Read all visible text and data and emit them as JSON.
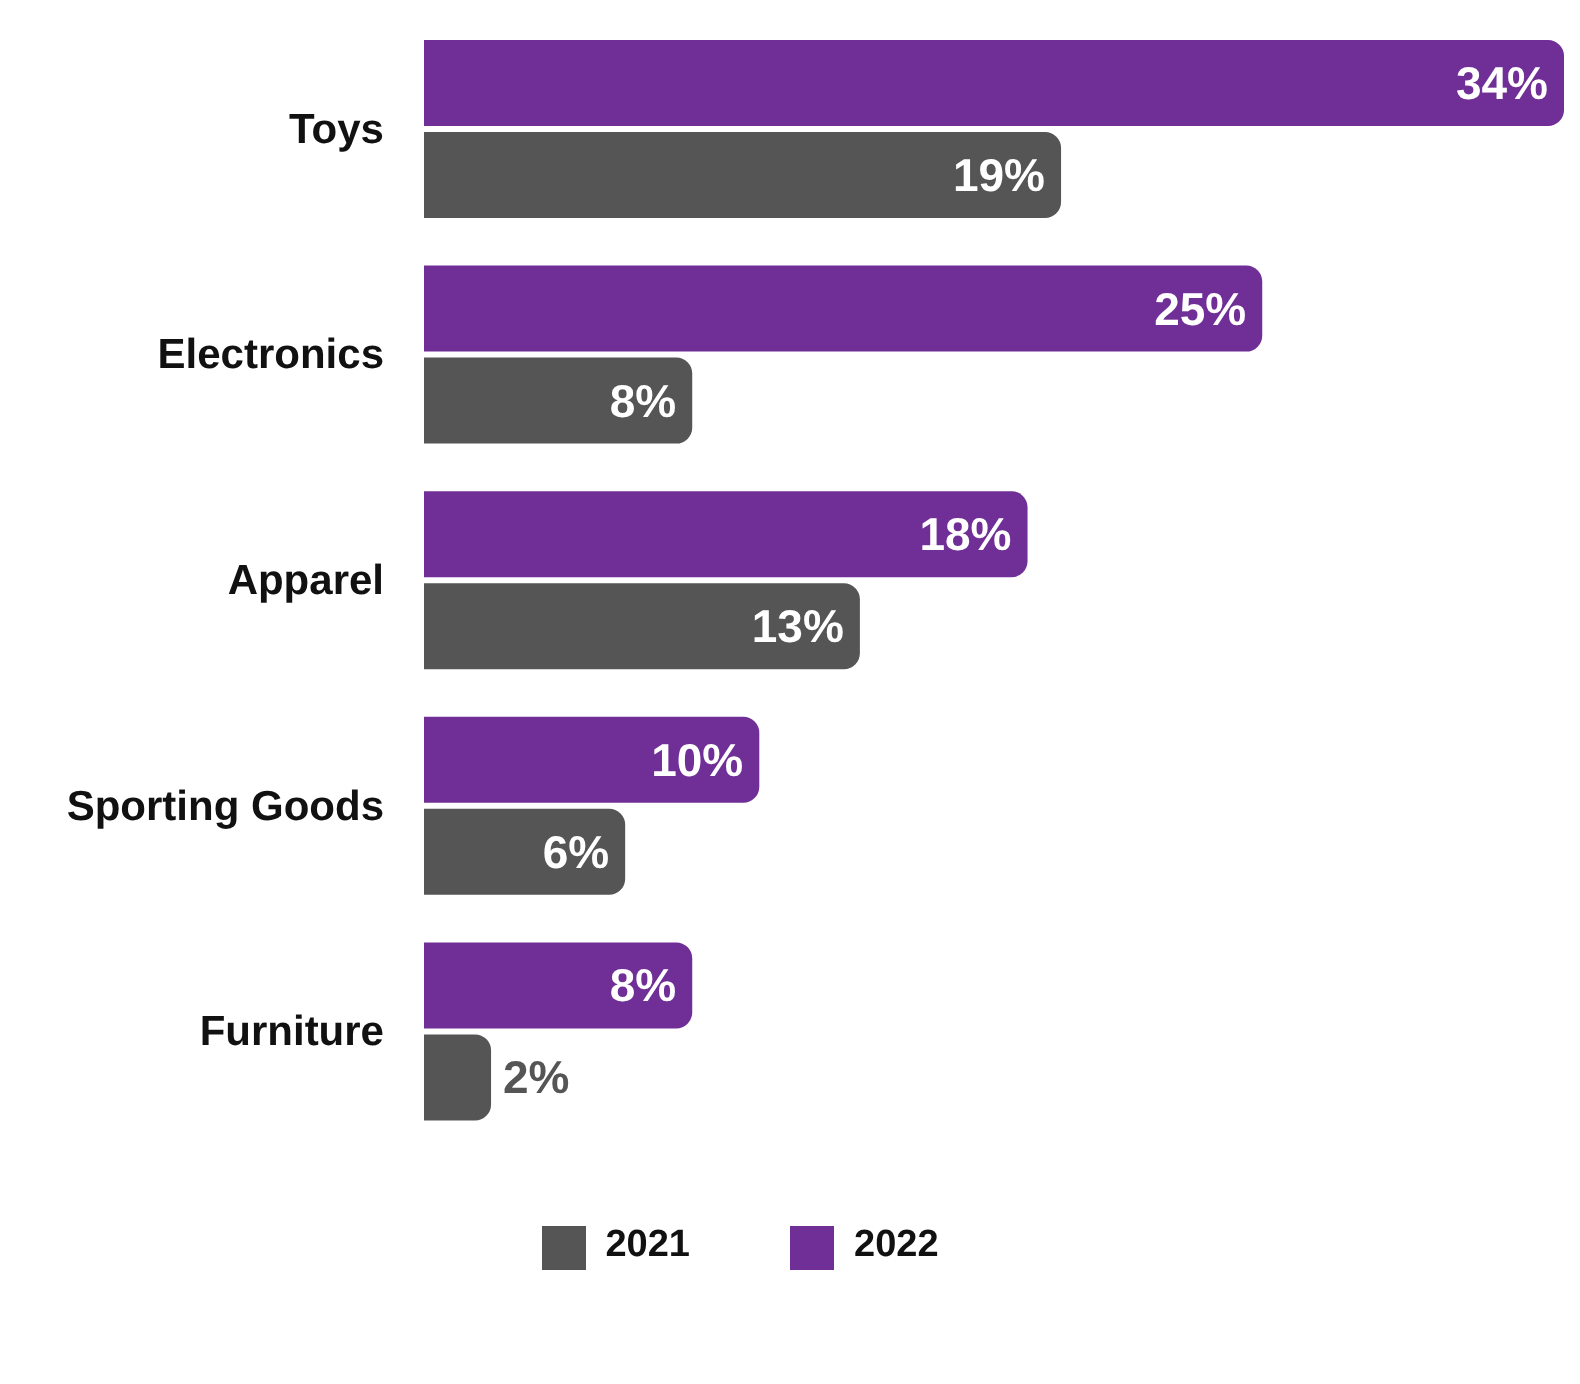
{
  "chart_data": {
    "type": "bar",
    "orientation": "horizontal",
    "categories": [
      "Toys",
      "Electronics",
      "Apparel",
      "Sporting Goods",
      "Furniture"
    ],
    "series": [
      {
        "name": "2022",
        "color": "#6f2f96",
        "values": [
          34,
          25,
          18,
          10,
          8
        ],
        "value_labels": [
          "34%",
          "25%",
          "18%",
          "10%",
          "8%"
        ]
      },
      {
        "name": "2021",
        "color": "#555555",
        "values": [
          19,
          8,
          13,
          6,
          2
        ],
        "value_labels": [
          "19%",
          "8%",
          "13%",
          "6%",
          "2%"
        ]
      }
    ],
    "legend": "bottom",
    "grid": false
  }
}
